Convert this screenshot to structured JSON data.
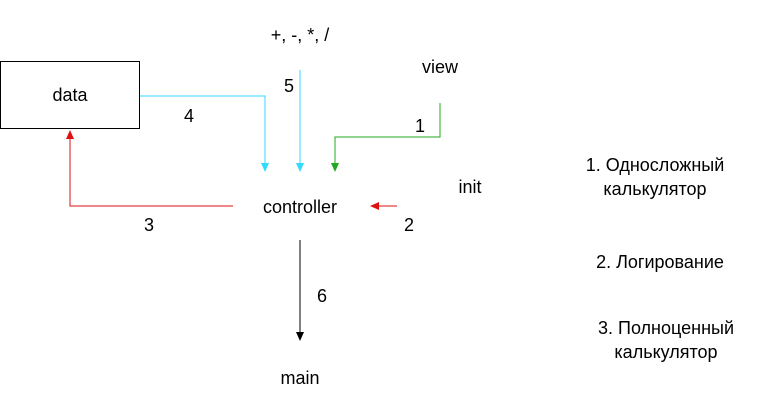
{
  "nodes": {
    "data": "data",
    "controller": "controller",
    "view": "view",
    "init": "init",
    "main": "main",
    "operations": "+, -, *, /"
  },
  "edge_labels": {
    "one": "1",
    "two": "2",
    "three": "3",
    "four": "4",
    "five": "5",
    "six": "6"
  },
  "notes": [
    {
      "line1": "1. Односложный",
      "line2": "калькулятор"
    },
    {
      "line1": "2. Логирование"
    },
    {
      "line1": "3. Полноценный",
      "line2": "калькулятор"
    }
  ],
  "colors": {
    "cyan": "#33d9ff",
    "green": "#22a822",
    "red": "#dd1111",
    "black": "#000000"
  }
}
